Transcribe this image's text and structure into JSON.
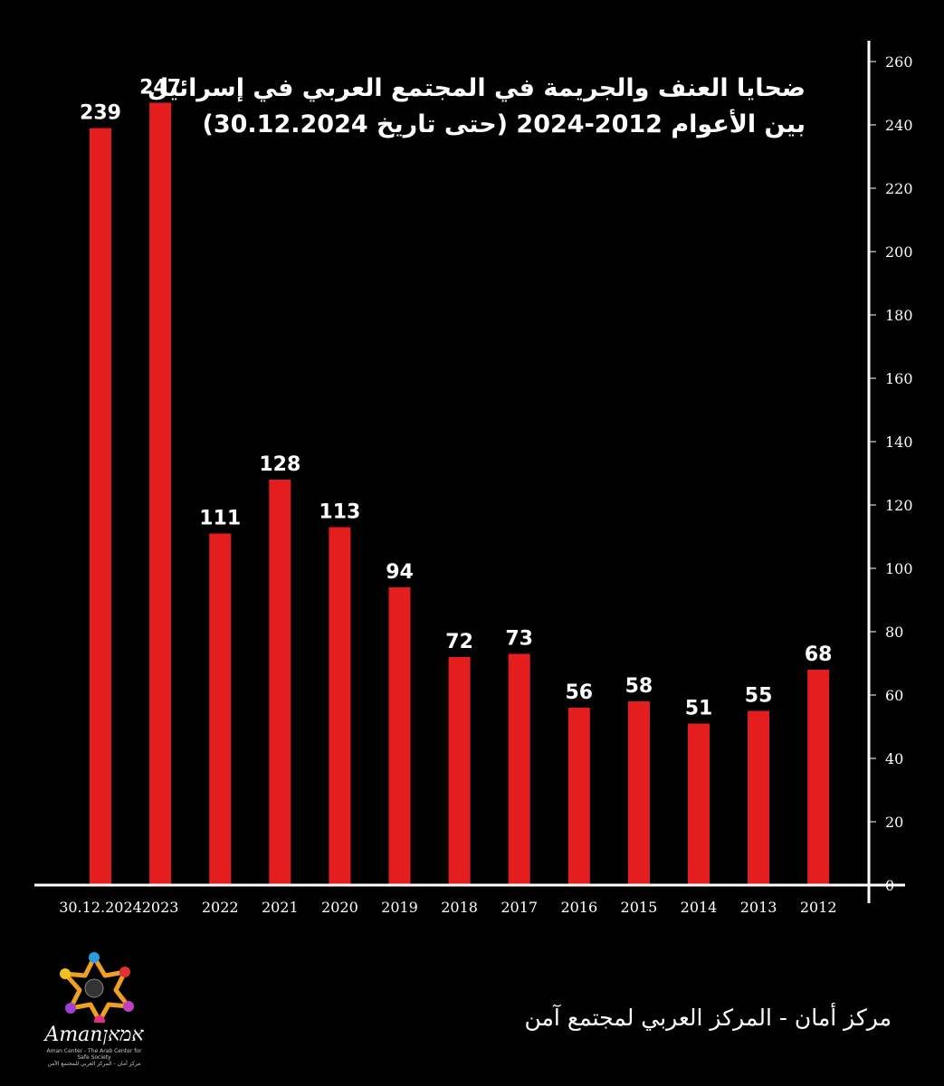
{
  "title": {
    "line1": "ضحايا العنف والجريمة في المجتمع العربي في إسرائيل",
    "line2": "بين الأعوام 2012-2024 (حتى تاريخ 30.12.2024)"
  },
  "footer": {
    "text": "مركز أمان  - المركز العربي لمجتمع آمن"
  },
  "logo": {
    "word": "Amanאמאן",
    "subline1": "Aman Center - The Arab Center for Safe Society",
    "subline2": "مركز أمان - المركز العربي للمجتمع الآمن"
  },
  "colors": {
    "background": "#000000",
    "bar": "#e41e1e",
    "text": "#ffffff",
    "axis": "#ffffff"
  },
  "chart_data": {
    "type": "bar",
    "categories": [
      "30.12.2024",
      "2023",
      "2022",
      "2021",
      "2020",
      "2019",
      "2018",
      "2017",
      "2016",
      "2015",
      "2014",
      "2013",
      "2012"
    ],
    "values": [
      239,
      247,
      111,
      128,
      113,
      94,
      72,
      73,
      56,
      58,
      51,
      55,
      68
    ],
    "ylim": [
      0,
      260
    ],
    "yticks": [
      0,
      20,
      40,
      60,
      80,
      100,
      120,
      140,
      160,
      180,
      200,
      220,
      240,
      260
    ],
    "yaxis_position": "right",
    "grid": false,
    "xlabel": "",
    "ylabel": ""
  }
}
